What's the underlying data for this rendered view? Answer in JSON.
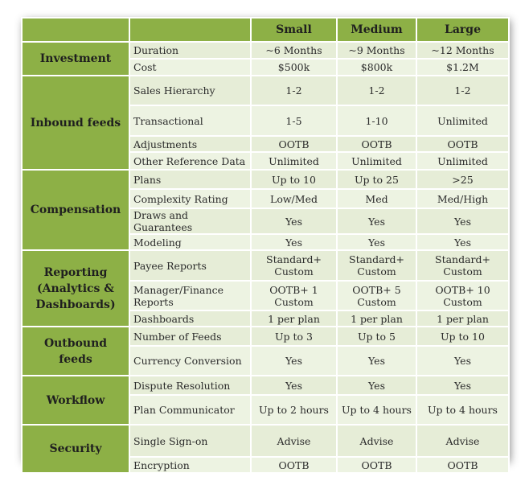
{
  "columns": {
    "small": "Small",
    "medium": "Medium",
    "large": "Large"
  },
  "groups": {
    "investment": "Investment",
    "inbound": "Inbound feeds",
    "compensation": "Compensation",
    "reporting": "Reporting (Analytics & Dashboards)",
    "outbound": "Outbound feeds",
    "workflow": "Workflow",
    "security": "Security"
  },
  "rows": [
    {
      "label": "Duration",
      "small": "~6 Months",
      "medium": "~9 Months",
      "large": "~12 Months"
    },
    {
      "label": "Cost",
      "small": "$500k",
      "medium": "$800k",
      "large": "$1.2M"
    },
    {
      "label": "Sales Hierarchy",
      "small": "1-2",
      "medium": "1-2",
      "large": "1-2"
    },
    {
      "label": "Transactional",
      "small": "1-5",
      "medium": "1-10",
      "large": "Unlimited"
    },
    {
      "label": "Adjustments",
      "small": "OOTB",
      "medium": "OOTB",
      "large": "OOTB"
    },
    {
      "label": "Other Reference Data",
      "small": "Unlimited",
      "medium": "Unlimited",
      "large": "Unlimited"
    },
    {
      "label": "Plans",
      "small": "Up to 10",
      "medium": "Up to 25",
      "large": ">25"
    },
    {
      "label": "Complexity Rating",
      "small": "Low/Med",
      "medium": "Med",
      "large": "Med/High"
    },
    {
      "label": "Draws and Guarantees",
      "small": "Yes",
      "medium": "Yes",
      "large": "Yes"
    },
    {
      "label": "Modeling",
      "small": "Yes",
      "medium": "Yes",
      "large": "Yes"
    },
    {
      "label": "Payee Reports",
      "small": "Standard+ Custom",
      "medium": "Standard+ Custom",
      "large": "Standard+ Custom"
    },
    {
      "label": "Manager/Finance Reports",
      "small": "OOTB+ 1 Custom",
      "medium": "OOTB+ 5 Custom",
      "large": "OOTB+ 10 Custom"
    },
    {
      "label": "Dashboards",
      "small": "1 per plan",
      "medium": "1 per plan",
      "large": "1 per plan"
    },
    {
      "label": "Number of Feeds",
      "small": "Up to 3",
      "medium": "Up to 5",
      "large": "Up to 10"
    },
    {
      "label": "Currency Conversion",
      "small": "Yes",
      "medium": "Yes",
      "large": "Yes"
    },
    {
      "label": "Dispute Resolution",
      "small": "Yes",
      "medium": "Yes",
      "large": "Yes"
    },
    {
      "label": "Plan Communicator",
      "small": "Up to 2 hours",
      "medium": "Up to 4 hours",
      "large": "Up to 4 hours"
    },
    {
      "label": "Single Sign-on",
      "small": "Advise",
      "medium": "Advise",
      "large": "Advise"
    },
    {
      "label": "Encryption",
      "small": "OOTB",
      "medium": "OOTB",
      "large": "OOTB"
    }
  ]
}
